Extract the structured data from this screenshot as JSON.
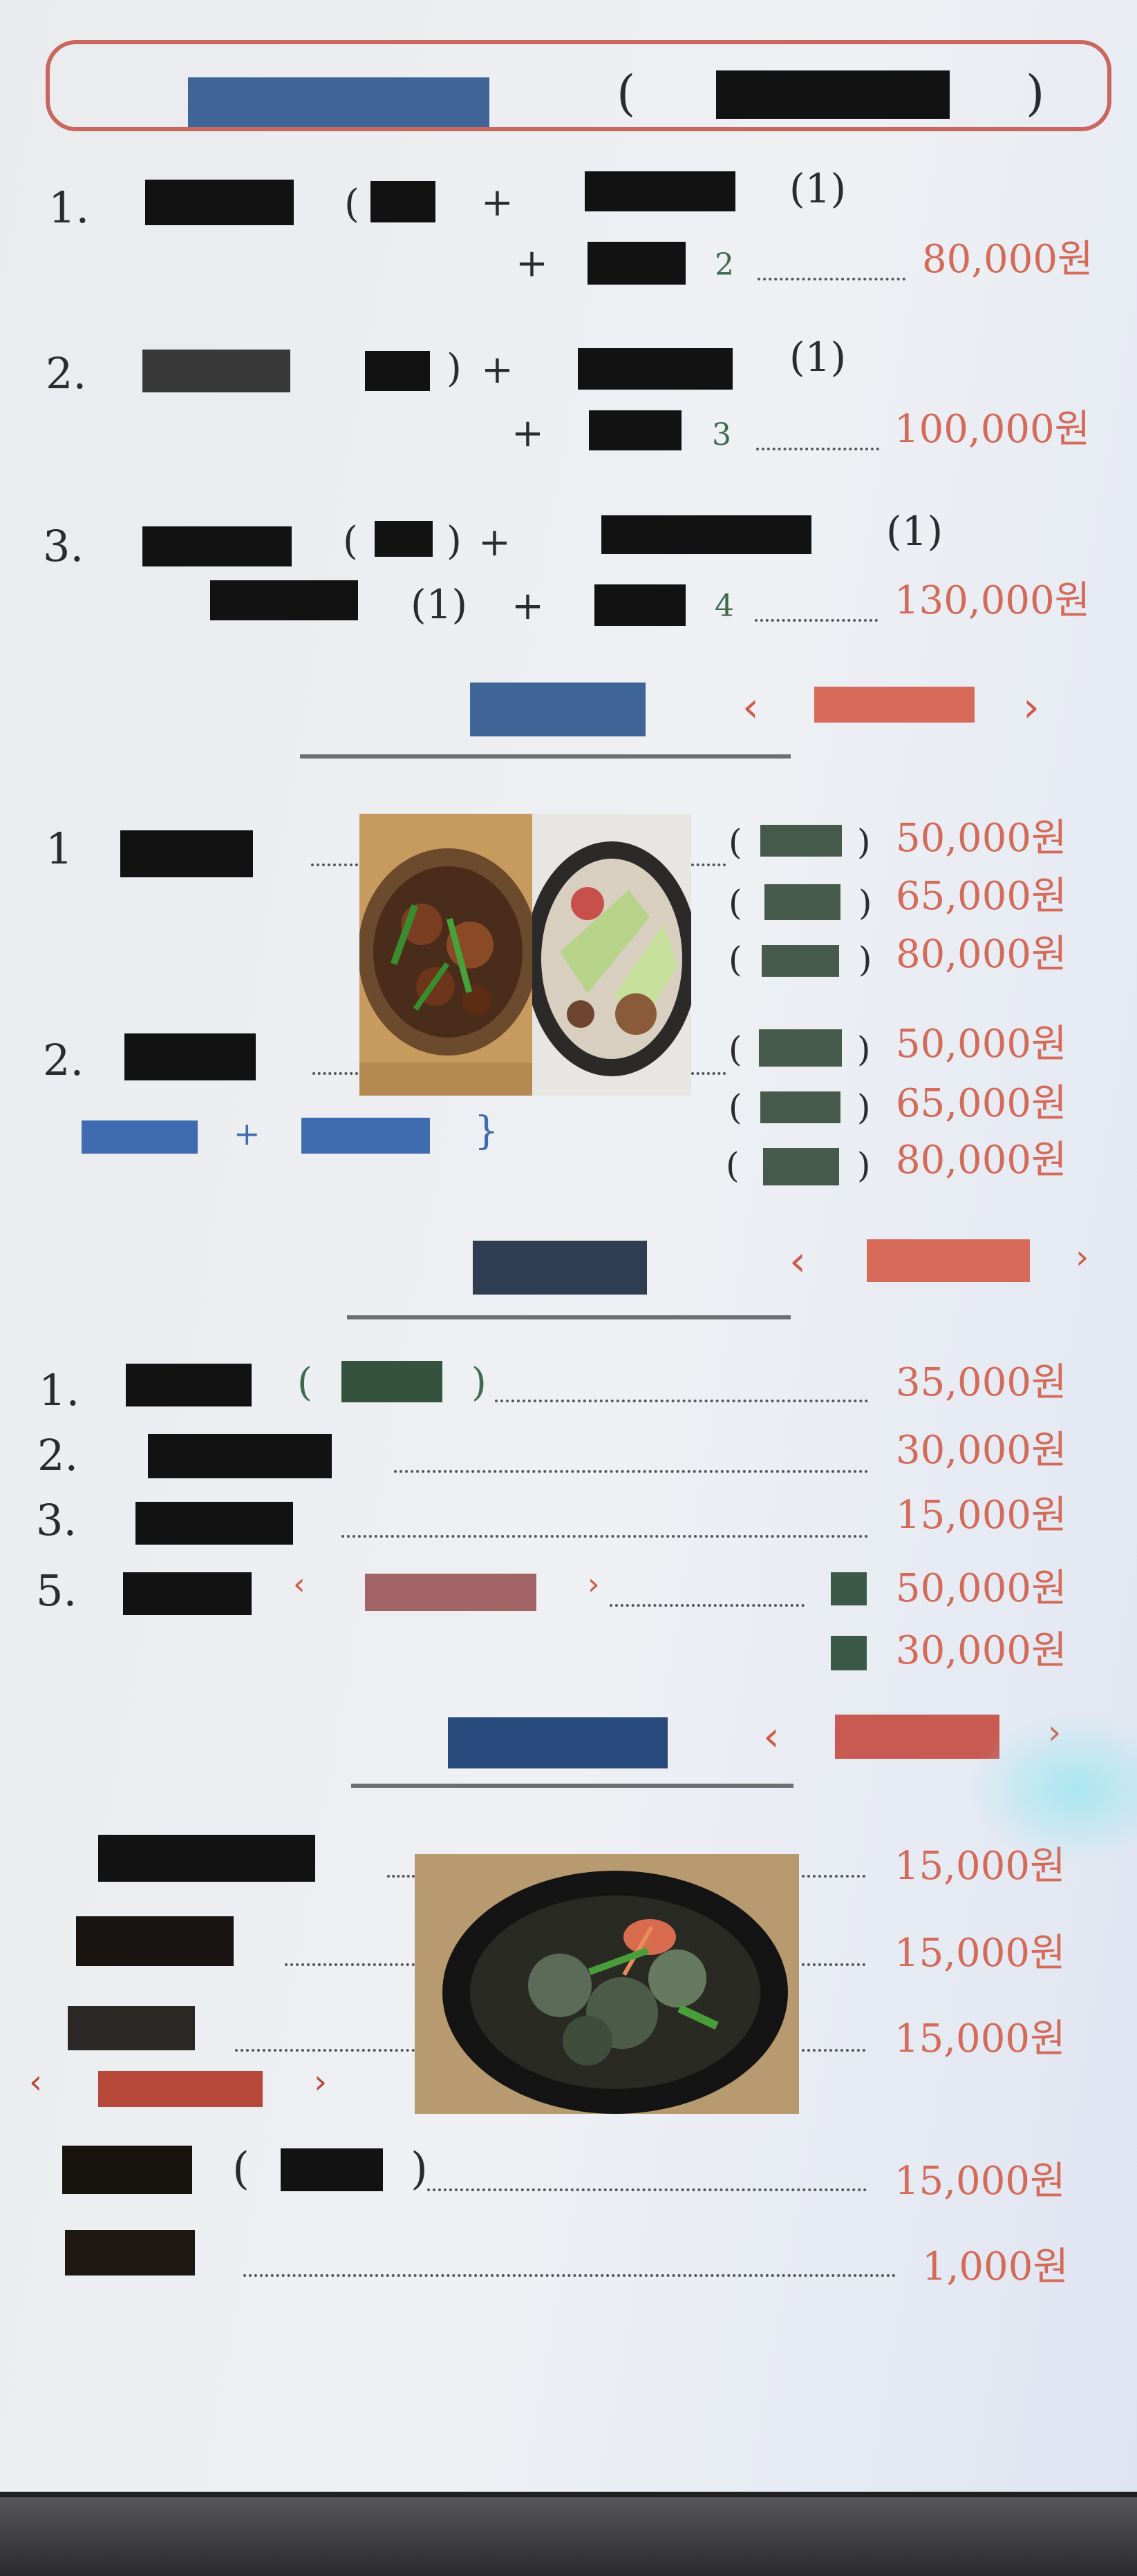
{
  "set_menu": {
    "items": [
      {
        "num": "1.",
        "extra": "(1)",
        "plus1": "+",
        "plus2": "+",
        "count": "2",
        "price": "80,000원"
      },
      {
        "num": "2.",
        "extra": "(1)",
        "plus1": "+",
        "plus2": "+",
        "count": "3",
        "price": "100,000원"
      },
      {
        "num": "3.",
        "extra": "(1)",
        "extra2": "(1)",
        "plus1": "+",
        "plus2": "+",
        "count": "4",
        "price": "130,000원"
      }
    ]
  },
  "section_b": {
    "items": [
      {
        "num": "1",
        "prices": [
          "50,000원",
          "65,000원",
          "80,000원"
        ]
      },
      {
        "num": "2.",
        "prices": [
          "50,000원",
          "65,000원",
          "80,000원"
        ]
      }
    ],
    "note_plus": "+",
    "note_brace": "}"
  },
  "section_c": {
    "items": [
      {
        "num": "1.",
        "price": "35,000원"
      },
      {
        "num": "2.",
        "price": "30,000원"
      },
      {
        "num": "3.",
        "price": "15,000원"
      },
      {
        "num": "5.",
        "price": "50,000원"
      },
      {
        "num": "",
        "price": "30,000원"
      }
    ]
  },
  "section_d": {
    "prices": [
      "15,000원",
      "15,000원",
      "15,000원",
      "15,000원",
      "1,000원"
    ]
  },
  "colors": {
    "price": "#d46a58",
    "heading_blue": "#3f6496",
    "accent_red": "#cf6a5a",
    "border": "#c9675f"
  }
}
